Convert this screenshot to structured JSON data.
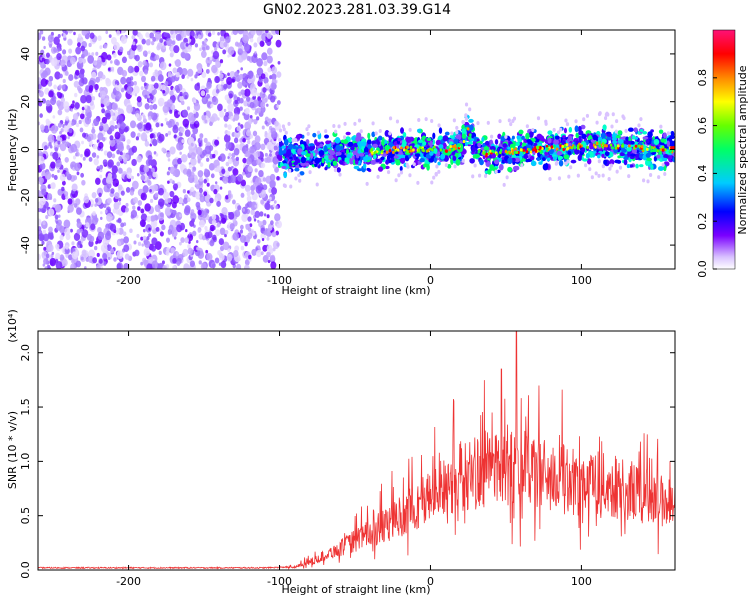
{
  "title": "GN02.2023.281.03.39.G14",
  "colors": {
    "snr_line": "#ee3333",
    "frame": "#000000",
    "points": "#8a2be2"
  },
  "chart_data": [
    {
      "type": "heatmap",
      "xlabel": "Height of straight line (km)",
      "ylabel": "Frequency (Hz)",
      "xlim": [
        -260,
        162
      ],
      "ylim": [
        -50,
        50
      ],
      "xticks": [
        -200,
        -100,
        0,
        100
      ],
      "yticks": [
        -40,
        -20,
        0,
        20,
        40
      ],
      "colorbar": {
        "label": "Normalized spectral amplitude",
        "range": [
          0.0,
          1.0
        ],
        "ticks": [
          "0.0",
          "0.2",
          "0.4",
          "0.6",
          "0.8"
        ]
      },
      "noise_region_x": [
        -260,
        -100
      ],
      "ridge": {
        "x": [
          -100,
          -80,
          -60,
          -40,
          -20,
          0,
          10,
          20,
          25,
          28,
          35,
          50,
          70,
          90,
          110,
          130,
          150,
          162
        ],
        "y": [
          -3,
          -2,
          -1,
          -1,
          0,
          0,
          0,
          1,
          8,
          2,
          -2,
          -1,
          0,
          1,
          2,
          1,
          0,
          0
        ]
      }
    },
    {
      "type": "line",
      "xlabel": "Height of straight line (km)",
      "ylabel": "SNR (10 * v/v)",
      "yscale_label": "(x10⁴)",
      "xlim": [
        -260,
        162
      ],
      "ylim": [
        0,
        2.2
      ],
      "xticks": [
        -200,
        -100,
        0,
        100
      ],
      "yticks": [
        "0.0",
        "0.5",
        "1.0",
        "1.5",
        "2.0"
      ],
      "series": [
        {
          "x": [
            -260,
            -200,
            -150,
            -110,
            -90,
            -80,
            -70,
            -60,
            -50,
            -40,
            -30,
            -20,
            -10,
            0,
            10,
            20,
            30,
            40,
            50,
            60,
            70,
            80,
            90,
            100,
            110,
            120,
            130,
            140,
            150,
            162
          ],
          "y": [
            0.02,
            0.02,
            0.02,
            0.02,
            0.03,
            0.08,
            0.15,
            0.22,
            0.3,
            0.38,
            0.45,
            0.55,
            0.65,
            0.75,
            0.85,
            0.95,
            1.0,
            1.05,
            1.08,
            1.05,
            1.0,
            0.95,
            0.92,
            0.9,
            0.88,
            0.85,
            0.82,
            0.78,
            0.72,
            0.68
          ]
        }
      ]
    }
  ]
}
